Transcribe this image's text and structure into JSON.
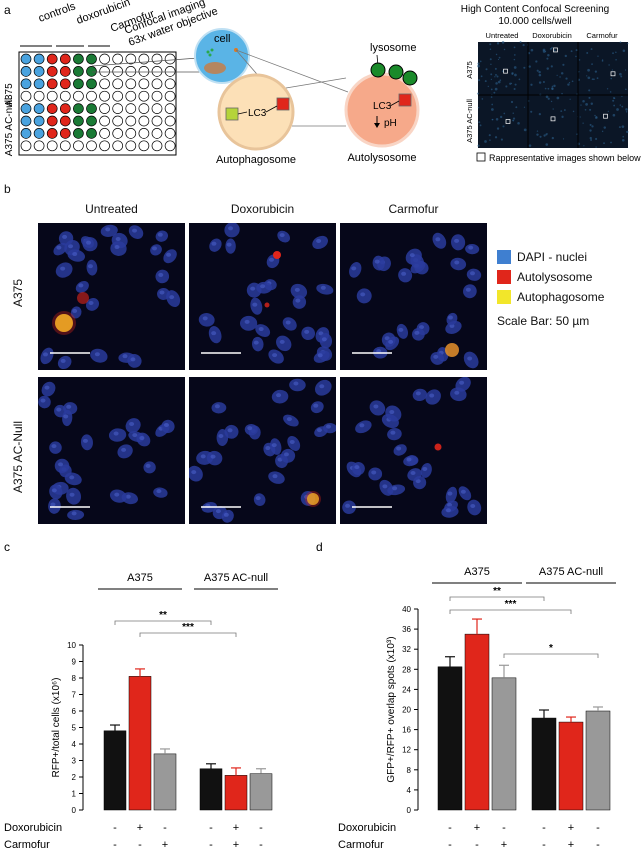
{
  "panel_a": {
    "letter": "a",
    "plate": {
      "groups": [
        "controls",
        "doxorubicin",
        "Carmofur"
      ],
      "row_labels": [
        "A375",
        "A375 AC-null"
      ]
    },
    "imaging": {
      "line1": "Confocal imaging",
      "line2": "63x water objective"
    },
    "cell_label": "cell",
    "lysosome_label": "lysosome",
    "lc3_label": "LC3",
    "lc3_label_2": "LC3",
    "ph_label": "pH",
    "autophagosome_label": "Autophagosome",
    "autolysosome_label": "Autolysosome",
    "screening": {
      "title1": "High Content Confocal Screening",
      "title2": "10.000 cells/well",
      "columns": [
        "Untreated",
        "Doxorubicin",
        "Carmofur"
      ],
      "rows": [
        "A375",
        "A375 AC-null"
      ],
      "note": "Rappresentative images shown below"
    }
  },
  "panel_b": {
    "letter": "b",
    "columns": [
      "Untreated",
      "Doxorubicin",
      "Carmofur"
    ],
    "rows": [
      "A375",
      "A375 AC-Null"
    ],
    "legend": [
      {
        "label": "DAPI - nuclei",
        "color": "#3f7fd0"
      },
      {
        "label": "Autolysosome",
        "color": "#e0261b"
      },
      {
        "label": "Autophagosome",
        "color": "#f2e62a"
      }
    ],
    "scale_bar": "Scale Bar: 50 µm"
  },
  "panel_c": {
    "letter": "c",
    "chart_data": {
      "type": "bar",
      "groups": [
        "A375",
        "A375 AC-null"
      ],
      "series_colors": [
        "#111111",
        "#e0261b",
        "#999999"
      ],
      "values": [
        [
          4.8,
          8.1,
          3.4
        ],
        [
          2.5,
          2.1,
          2.2
        ]
      ],
      "errors": [
        [
          0.35,
          0.45,
          0.3
        ],
        [
          0.3,
          0.45,
          0.3
        ]
      ],
      "ylabel": "RFP+/total cells (x10⁶)",
      "ylim": [
        0,
        10
      ],
      "yticks": [
        "0",
        "1",
        "2",
        "3",
        "4",
        "5",
        "6",
        "7",
        "8",
        "9",
        "10"
      ],
      "significance": [
        "**",
        "***"
      ],
      "treatments": [
        {
          "name": "Doxorubicin",
          "marks": [
            "-",
            "+",
            "-",
            "-",
            "+",
            "-"
          ]
        },
        {
          "name": "Carmofur",
          "marks": [
            "-",
            "-",
            "+",
            "-",
            "+",
            "-"
          ]
        }
      ]
    }
  },
  "panel_d": {
    "letter": "d",
    "chart_data": {
      "type": "bar",
      "groups": [
        "A375",
        "A375 AC-null"
      ],
      "series_colors": [
        "#111111",
        "#e0261b",
        "#999999"
      ],
      "values": [
        [
          28.5,
          35.0,
          26.3
        ],
        [
          18.3,
          17.5,
          19.7
        ]
      ],
      "errors": [
        [
          2.0,
          3.0,
          2.5
        ],
        [
          1.6,
          1.0,
          0.8
        ]
      ],
      "ylabel": "GFP+/RFP+ overlap spots (x10³)",
      "ylim": [
        0,
        40
      ],
      "yticks": [
        "0",
        "4",
        "8",
        "12",
        "16",
        "20",
        "24",
        "28",
        "32",
        "36",
        "40"
      ],
      "significance": [
        "**",
        "***",
        "*"
      ],
      "treatments": [
        {
          "name": "Doxorubicin",
          "marks": [
            "-",
            "+",
            "-",
            "-",
            "+",
            "-"
          ]
        },
        {
          "name": "Carmofur",
          "marks": [
            "-",
            "-",
            "+",
            "-",
            "+",
            "-"
          ]
        }
      ]
    }
  }
}
